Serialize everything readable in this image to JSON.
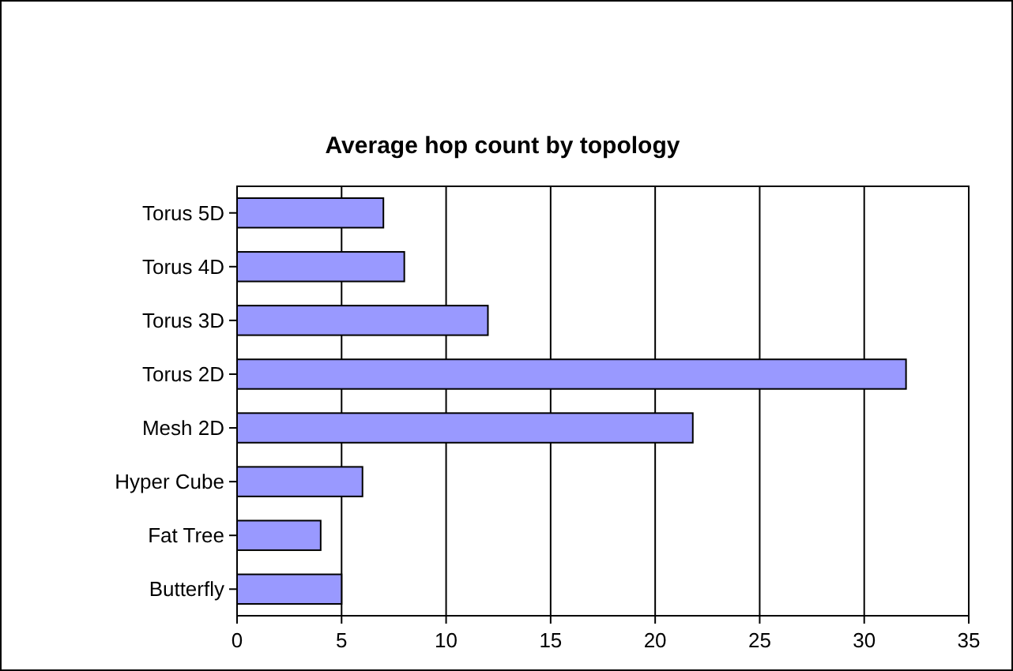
{
  "chart_data": {
    "type": "bar",
    "orientation": "horizontal",
    "title": "Average hop count by topology",
    "categories": [
      "Torus 5D",
      "Torus 4D",
      "Torus 3D",
      "Torus 2D",
      "Mesh 2D",
      "Hyper Cube",
      "Fat Tree",
      "Butterfly"
    ],
    "values": [
      7,
      8,
      12,
      32,
      21.8,
      6,
      4,
      5
    ],
    "color": "#9999ff",
    "xlim": [
      0,
      35
    ],
    "xticks": [
      0,
      5,
      10,
      15,
      20,
      25,
      30,
      35
    ],
    "grid": "x"
  }
}
